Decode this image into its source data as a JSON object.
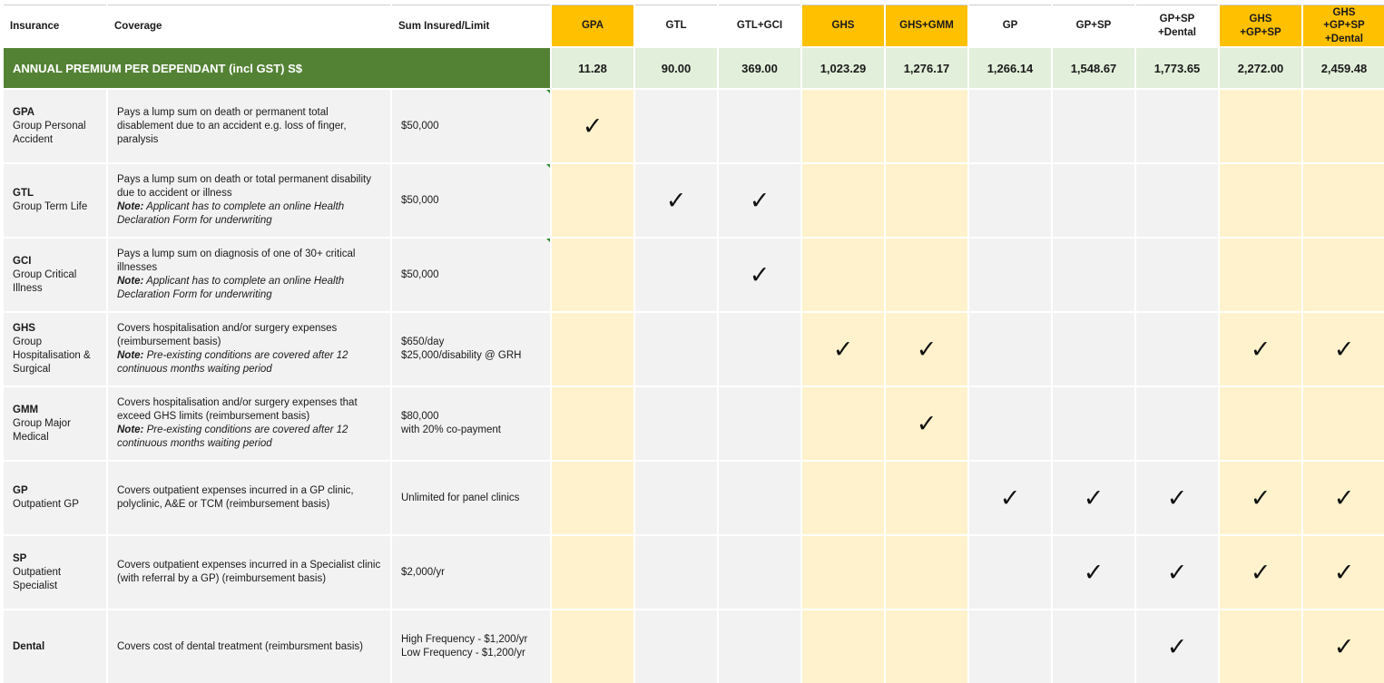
{
  "header": {
    "insurance": "Insurance",
    "coverage": "Coverage",
    "sum_insured": "Sum Insured/Limit"
  },
  "plans": [
    {
      "label": "GPA",
      "highlight": true
    },
    {
      "label": "GTL",
      "highlight": false
    },
    {
      "label": "GTL+GCI",
      "highlight": false
    },
    {
      "label": "GHS",
      "highlight": true
    },
    {
      "label": "GHS+GMM",
      "highlight": true
    },
    {
      "label": "GP",
      "highlight": false
    },
    {
      "label": "GP+SP",
      "highlight": false
    },
    {
      "label": "GP+SP\n+Dental",
      "highlight": false
    },
    {
      "label": "GHS\n+GP+SP",
      "highlight": true
    },
    {
      "label": "GHS\n+GP+SP\n+Dental",
      "highlight": true
    }
  ],
  "premium": {
    "label": "ANNUAL PREMIUM PER DEPENDANT (incl GST) S$",
    "values": [
      "11.28",
      "90.00",
      "369.00",
      "1,023.29",
      "1,276.17",
      "1,266.14",
      "1,548.67",
      "1,773.65",
      "2,272.00",
      "2,459.48"
    ]
  },
  "colors": {
    "plan_highlight": "#ffc000",
    "premium_bar": "#548235",
    "premium_values_bg": "#e2efda",
    "row_bg": "#f2f2f2",
    "highlight_column_bg": "#fff2cc"
  },
  "tick_glyph": "✓",
  "rows": [
    {
      "code": "GPA",
      "name": "Group Personal Accident",
      "coverage": "Pays a lump sum on death or permanent total disablement due to an accident e.g. loss of finger, paralysis",
      "note_label": "",
      "note": "",
      "sum": [
        "$50,000"
      ],
      "ticks": [
        true,
        false,
        false,
        false,
        false,
        false,
        false,
        false,
        false,
        false
      ]
    },
    {
      "code": "GTL",
      "name": "Group Term Life",
      "coverage": "Pays a lump sum on death or total permanent disability due to accident or illness",
      "note_label": "Note:",
      "note": "Applicant has to complete an online Health Declaration Form for underwriting",
      "sum": [
        "$50,000"
      ],
      "ticks": [
        false,
        true,
        true,
        false,
        false,
        false,
        false,
        false,
        false,
        false
      ]
    },
    {
      "code": "GCI",
      "name": "Group Critical Illness",
      "coverage": "Pays a lump sum on diagnosis of one of 30+ critical illnesses",
      "note_label": "Note:",
      "note": "Applicant has to complete an online Health Declaration Form for underwriting",
      "sum": [
        "$50,000"
      ],
      "ticks": [
        false,
        false,
        true,
        false,
        false,
        false,
        false,
        false,
        false,
        false
      ]
    },
    {
      "code": "GHS",
      "name": "Group Hospitalisation & Surgical",
      "coverage": "Covers hospitalisation and/or surgery expenses (reimbursement basis)",
      "note_label": "Note:",
      "note": "Pre-existing conditions are covered after 12 continuous months waiting period",
      "sum": [
        "$650/day",
        "$25,000/disability @ GRH"
      ],
      "ticks": [
        false,
        false,
        false,
        true,
        true,
        false,
        false,
        false,
        true,
        true
      ]
    },
    {
      "code": "GMM",
      "name": "Group Major Medical",
      "coverage": "Covers hospitalisation and/or surgery expenses that exceed GHS limits (reimbursement basis)",
      "note_label": "Note:",
      "note": "Pre-existing conditions are covered after 12 continuous months waiting period",
      "sum": [
        "$80,000",
        "with 20% co-payment"
      ],
      "ticks": [
        false,
        false,
        false,
        false,
        true,
        false,
        false,
        false,
        false,
        false
      ]
    },
    {
      "code": "GP",
      "name": "Outpatient GP",
      "coverage": "Covers outpatient expenses incurred in a GP clinic, polyclinic, A&E or TCM (reimbursement basis)",
      "note_label": "",
      "note": "",
      "sum": [
        "Unlimited for panel clinics"
      ],
      "ticks": [
        false,
        false,
        false,
        false,
        false,
        true,
        true,
        true,
        true,
        true
      ]
    },
    {
      "code": "SP",
      "name": "Outpatient Specialist",
      "coverage": "Covers outpatient expenses incurred in a Specialist clinic (with referral by a GP) (reimbursement basis)",
      "note_label": "",
      "note": "",
      "sum": [
        "$2,000/yr"
      ],
      "ticks": [
        false,
        false,
        false,
        false,
        false,
        false,
        true,
        true,
        true,
        true
      ]
    },
    {
      "code": "Dental",
      "name": "",
      "coverage": "Covers cost of dental treatment (reimbursment basis)",
      "note_label": "",
      "note": "",
      "sum": [
        "High Frequency - $1,200/yr",
        "Low Frequency - $1,200/yr"
      ],
      "ticks": [
        false,
        false,
        false,
        false,
        false,
        false,
        false,
        true,
        false,
        true
      ]
    }
  ]
}
